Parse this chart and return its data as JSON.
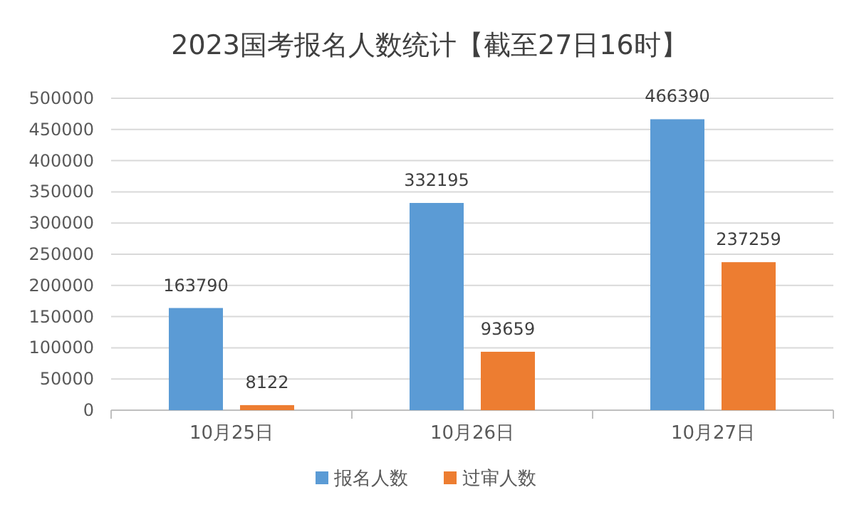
{
  "chart_data": {
    "type": "bar",
    "title": "2023国考报名人数统计【截至27日16时】",
    "categories": [
      "10月25日",
      "10月26日",
      "10月27日"
    ],
    "series": [
      {
        "name": "报名人数",
        "color": "#5b9bd5",
        "values": [
          163790,
          332195,
          466390
        ]
      },
      {
        "name": "过审人数",
        "color": "#ed7d31",
        "values": [
          8122,
          93659,
          237259
        ]
      }
    ],
    "ylim": [
      0,
      500000
    ],
    "yticks": [
      0,
      50000,
      100000,
      150000,
      200000,
      250000,
      300000,
      350000,
      400000,
      450000,
      500000
    ],
    "grid": "y",
    "legend": "bottom",
    "data_labels": true
  }
}
